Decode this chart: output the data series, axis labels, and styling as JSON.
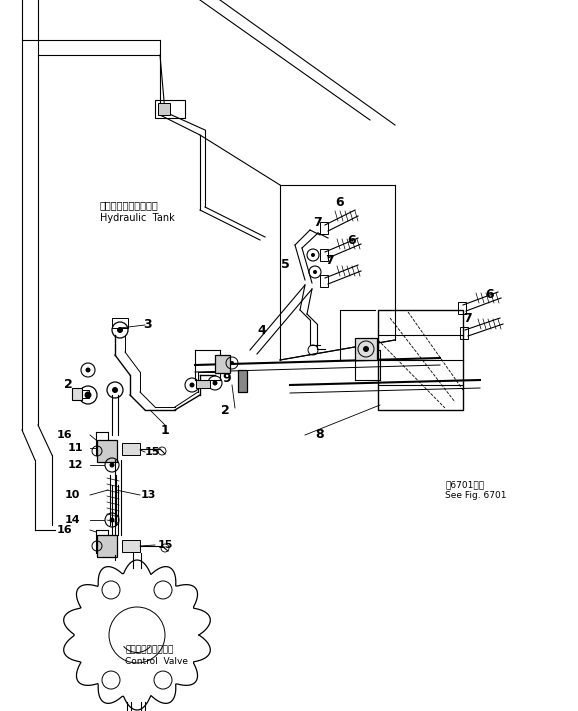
{
  "bg_color": "#ffffff",
  "line_color": "#000000",
  "fig_width": 5.78,
  "fig_height": 7.11,
  "dpi": 100,
  "labels": {
    "hydraulic_tank_jp": "ハイドロリックタンク",
    "hydraulic_tank_en": "Hydraulic  Tank",
    "control_valve_jp": "コントロールバルブ",
    "control_valve_en": "Control  Valve",
    "see_fig_jp": "図6701参照",
    "see_fig_en": "See Fig. 6701"
  }
}
